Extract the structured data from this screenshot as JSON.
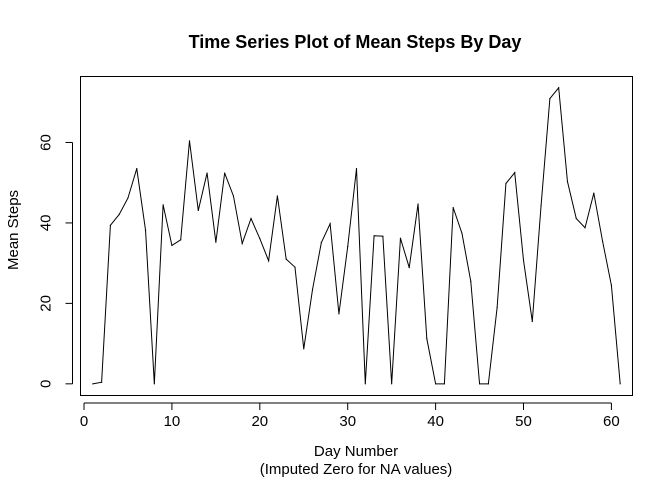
{
  "chart_data": {
    "type": "line",
    "title": "Time Series Plot of Mean Steps By Day",
    "xlabel": "Day Number",
    "xlabel_sub": "(Imputed Zero for NA values)",
    "ylabel": "Mean Steps",
    "xlim": [
      -0.4,
      62.4
    ],
    "ylim": [
      -2.9,
      76.4
    ],
    "xticks": [
      0,
      10,
      20,
      30,
      40,
      50,
      60
    ],
    "yticks": [
      0,
      20,
      40,
      60
    ],
    "grid": false,
    "line_color": "#000000",
    "series": [
      {
        "x": [
          1,
          2,
          3,
          4,
          5,
          6,
          7,
          8,
          9,
          10,
          11,
          12,
          13,
          14,
          15,
          16,
          17,
          18,
          19,
          20,
          21,
          22,
          23,
          24,
          25,
          26,
          27,
          28,
          29,
          30,
          31,
          32,
          33,
          34,
          35,
          36,
          37,
          38,
          39,
          40,
          41,
          42,
          43,
          44,
          45,
          46,
          47,
          48,
          49,
          50,
          51,
          52,
          53,
          54,
          55,
          56,
          57,
          58,
          59,
          60,
          61
        ],
        "values": [
          0,
          0.4,
          39.4,
          42.1,
          46.2,
          53.5,
          38.2,
          0,
          44.5,
          34.4,
          35.8,
          60.4,
          43.1,
          52.4,
          35.2,
          52.4,
          46.7,
          34.9,
          41.1,
          36.1,
          30.6,
          46.7,
          31.0,
          29.0,
          8.7,
          23.5,
          35.1,
          39.8,
          17.4,
          34.1,
          53.5,
          0,
          36.8,
          36.7,
          0,
          36.2,
          28.9,
          44.7,
          11.2,
          0,
          0,
          43.8,
          37.4,
          25.5,
          0,
          0,
          19.0,
          49.8,
          52.5,
          30.7,
          15.5,
          44.4,
          70.9,
          73.6,
          50.3,
          41.1,
          38.8,
          47.4,
          35.4,
          24.5,
          0
        ]
      }
    ]
  }
}
